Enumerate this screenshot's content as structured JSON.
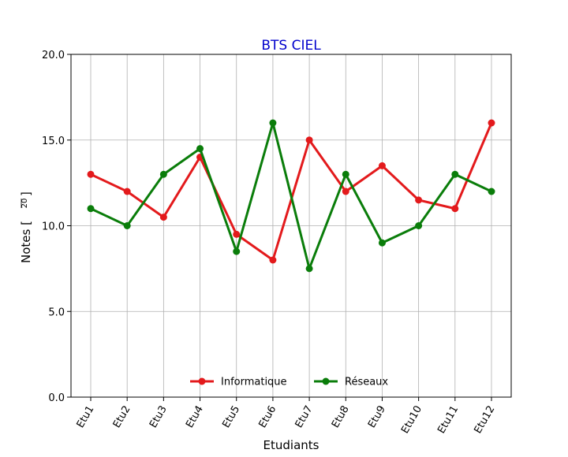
{
  "chart_data": {
    "type": "line",
    "title": "BTS CIEL",
    "title_color": "#0000cc",
    "xlabel": "Etudiants",
    "ylabel": "Notes [",
    "ylabel_fraction": "—\n20",
    "ylabel_unit_top": "",
    "ylabel_unit_bottom": "20",
    "ylabel_close": "]",
    "categories": [
      "Etu1",
      "Etu2",
      "Etu3",
      "Etu4",
      "Etu5",
      "Etu6",
      "Etu7",
      "Etu8",
      "Etu9",
      "Etu10",
      "Etu11",
      "Etu12"
    ],
    "ylim": [
      0,
      20
    ],
    "yticks": [
      0,
      5,
      10,
      15,
      20
    ],
    "ytick_labels": [
      "0.0",
      "5.0",
      "10.0",
      "15.0",
      "20.0"
    ],
    "grid": true,
    "legend_position": "lower center",
    "series": [
      {
        "name": "Informatique",
        "color": "#e31a1c",
        "values": [
          13,
          12,
          10.5,
          14,
          9.5,
          8,
          15,
          12,
          13.5,
          11.5,
          11,
          16
        ]
      },
      {
        "name": "Réseaux",
        "color": "#0a7d0a",
        "values": [
          11,
          10,
          13,
          14.5,
          8.5,
          16,
          7.5,
          13,
          9,
          10,
          13,
          12
        ]
      }
    ]
  }
}
